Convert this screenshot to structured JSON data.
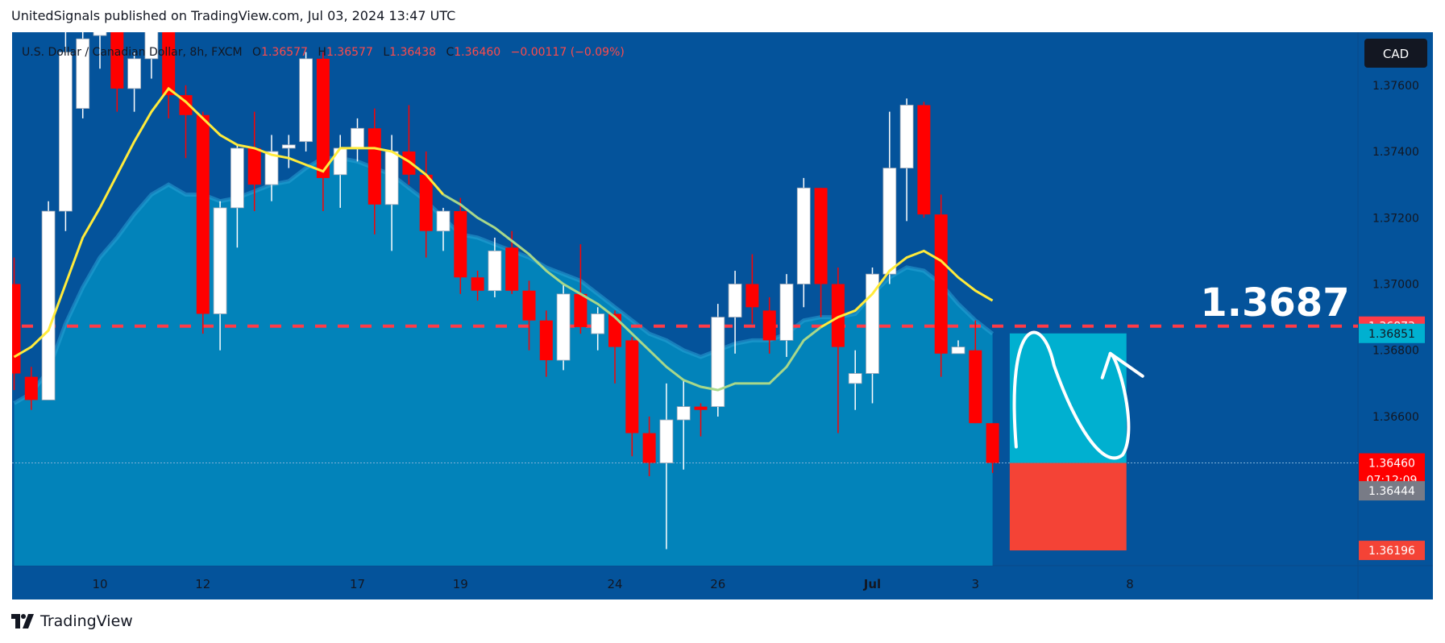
{
  "header": {
    "published": "UnitedSignals published on TradingView.com, Jul 03, 2024 13:47 UTC"
  },
  "footer": {
    "brand": "TradingView"
  },
  "legend": {
    "symbol": "U.S. Dollar / Canadian Dollar, 8h, FXCM",
    "o_label": "O",
    "o_value": "1.36577",
    "h_label": "H",
    "h_value": "1.36577",
    "l_label": "L",
    "l_value": "1.36438",
    "c_label": "C",
    "c_value": "1.36460",
    "change": "−0.00117 (−0.09%)"
  },
  "currency_button": "CAD",
  "annotation": {
    "target_text": "1.3687"
  },
  "price_labels": {
    "dashed": "1.36873",
    "target_top": "1.36851",
    "current": "1.36460",
    "countdown": "07:12:09",
    "grey": "1.36444",
    "stop": "1.36196"
  },
  "colors": {
    "bg_top": "#04539b",
    "bg_area": "#0283ba",
    "bull": "#ffffff",
    "bear": "#ff0000",
    "ma_fast": "#ffeb3b",
    "target_box": "#00b0d0",
    "stop_box": "#f44336",
    "dashed_line": "#ff3b47"
  },
  "chart_data": {
    "type": "candlestick",
    "instrument": "U.S. Dollar / Canadian Dollar",
    "timeframe": "8h",
    "y_ticks": [
      1.376,
      1.374,
      1.372,
      1.37,
      1.368,
      1.366
    ],
    "y_tick_labels": [
      "1.37600",
      "1.37400",
      "1.37200",
      "1.37000",
      "1.36800",
      "1.36600"
    ],
    "ylim": [
      1.3615,
      1.3776
    ],
    "x_ticks": [
      {
        "label": "10",
        "x": 5.0
      },
      {
        "label": "12",
        "x": 11.0
      },
      {
        "label": "17",
        "x": 20.0
      },
      {
        "label": "19",
        "x": 26.0
      },
      {
        "label": "24",
        "x": 35.0
      },
      {
        "label": "26",
        "x": 41.0
      },
      {
        "label": "Jul",
        "x": 50.0
      },
      {
        "label": "3",
        "x": 56.0
      },
      {
        "label": "8",
        "x": 65.0
      }
    ],
    "candles": [
      {
        "o": 1.37,
        "h": 1.3708,
        "l": 1.3668,
        "c": 1.3673
      },
      {
        "o": 1.3672,
        "h": 1.3675,
        "l": 1.3662,
        "c": 1.3665
      },
      {
        "o": 1.3665,
        "h": 1.3725,
        "l": 1.3665,
        "c": 1.3722
      },
      {
        "o": 1.3722,
        "h": 1.3778,
        "l": 1.3716,
        "c": 1.377
      },
      {
        "o": 1.3753,
        "h": 1.378,
        "l": 1.375,
        "c": 1.3774
      },
      {
        "o": 1.3775,
        "h": 1.379,
        "l": 1.3765,
        "c": 1.378
      },
      {
        "o": 1.3778,
        "h": 1.3788,
        "l": 1.3752,
        "c": 1.3759
      },
      {
        "o": 1.3759,
        "h": 1.377,
        "l": 1.3752,
        "c": 1.3768
      },
      {
        "o": 1.3768,
        "h": 1.3785,
        "l": 1.3762,
        "c": 1.3778
      },
      {
        "o": 1.379,
        "h": 1.3795,
        "l": 1.375,
        "c": 1.3757
      },
      {
        "o": 1.3757,
        "h": 1.376,
        "l": 1.3738,
        "c": 1.3751
      },
      {
        "o": 1.3751,
        "h": 1.3752,
        "l": 1.3685,
        "c": 1.3691
      },
      {
        "o": 1.3691,
        "h": 1.3725,
        "l": 1.368,
        "c": 1.3723
      },
      {
        "o": 1.3723,
        "h": 1.3742,
        "l": 1.3711,
        "c": 1.3741
      },
      {
        "o": 1.3741,
        "h": 1.3752,
        "l": 1.3722,
        "c": 1.373
      },
      {
        "o": 1.373,
        "h": 1.3745,
        "l": 1.3725,
        "c": 1.374
      },
      {
        "o": 1.3741,
        "h": 1.3745,
        "l": 1.3735,
        "c": 1.3742
      },
      {
        "o": 1.3743,
        "h": 1.377,
        "l": 1.374,
        "c": 1.3768
      },
      {
        "o": 1.3768,
        "h": 1.377,
        "l": 1.3722,
        "c": 1.3732
      },
      {
        "o": 1.3733,
        "h": 1.3745,
        "l": 1.3723,
        "c": 1.3741
      },
      {
        "o": 1.3741,
        "h": 1.375,
        "l": 1.3737,
        "c": 1.3747
      },
      {
        "o": 1.3747,
        "h": 1.3753,
        "l": 1.3715,
        "c": 1.3724
      },
      {
        "o": 1.3724,
        "h": 1.3745,
        "l": 1.371,
        "c": 1.374
      },
      {
        "o": 1.374,
        "h": 1.3754,
        "l": 1.373,
        "c": 1.3733
      },
      {
        "o": 1.3733,
        "h": 1.374,
        "l": 1.3708,
        "c": 1.3716
      },
      {
        "o": 1.3716,
        "h": 1.3723,
        "l": 1.371,
        "c": 1.3722
      },
      {
        "o": 1.3722,
        "h": 1.3726,
        "l": 1.3697,
        "c": 1.3702
      },
      {
        "o": 1.3702,
        "h": 1.3704,
        "l": 1.3695,
        "c": 1.3698
      },
      {
        "o": 1.3698,
        "h": 1.3714,
        "l": 1.3696,
        "c": 1.371
      },
      {
        "o": 1.3711,
        "h": 1.3716,
        "l": 1.3697,
        "c": 1.3698
      },
      {
        "o": 1.3698,
        "h": 1.3701,
        "l": 1.368,
        "c": 1.3689
      },
      {
        "o": 1.3689,
        "h": 1.3692,
        "l": 1.3672,
        "c": 1.3677
      },
      {
        "o": 1.3677,
        "h": 1.37,
        "l": 1.3674,
        "c": 1.3697
      },
      {
        "o": 1.3697,
        "h": 1.3712,
        "l": 1.3685,
        "c": 1.3687
      },
      {
        "o": 1.3685,
        "h": 1.3693,
        "l": 1.368,
        "c": 1.3691
      },
      {
        "o": 1.3691,
        "h": 1.3692,
        "l": 1.367,
        "c": 1.3681
      },
      {
        "o": 1.3683,
        "h": 1.3684,
        "l": 1.3648,
        "c": 1.3655
      },
      {
        "o": 1.3655,
        "h": 1.366,
        "l": 1.3642,
        "c": 1.3646
      },
      {
        "o": 1.3646,
        "h": 1.367,
        "l": 1.362,
        "c": 1.3659
      },
      {
        "o": 1.3659,
        "h": 1.3671,
        "l": 1.3644,
        "c": 1.3663
      },
      {
        "o": 1.3663,
        "h": 1.3664,
        "l": 1.3654,
        "c": 1.3662
      },
      {
        "o": 1.3663,
        "h": 1.3694,
        "l": 1.366,
        "c": 1.369
      },
      {
        "o": 1.369,
        "h": 1.3704,
        "l": 1.3679,
        "c": 1.37
      },
      {
        "o": 1.37,
        "h": 1.3709,
        "l": 1.3688,
        "c": 1.3693
      },
      {
        "o": 1.3692,
        "h": 1.3696,
        "l": 1.3679,
        "c": 1.3683
      },
      {
        "o": 1.3683,
        "h": 1.3703,
        "l": 1.3678,
        "c": 1.37
      },
      {
        "o": 1.37,
        "h": 1.3732,
        "l": 1.3693,
        "c": 1.3729
      },
      {
        "o": 1.3729,
        "h": 1.3729,
        "l": 1.369,
        "c": 1.37
      },
      {
        "o": 1.37,
        "h": 1.3705,
        "l": 1.3655,
        "c": 1.3681
      },
      {
        "o": 1.367,
        "h": 1.368,
        "l": 1.3662,
        "c": 1.3673
      },
      {
        "o": 1.3673,
        "h": 1.3705,
        "l": 1.3664,
        "c": 1.3703
      },
      {
        "o": 1.3703,
        "h": 1.3752,
        "l": 1.37,
        "c": 1.3735
      },
      {
        "o": 1.3735,
        "h": 1.3756,
        "l": 1.3719,
        "c": 1.3754
      },
      {
        "o": 1.3754,
        "h": 1.3755,
        "l": 1.372,
        "c": 1.3721
      },
      {
        "o": 1.3721,
        "h": 1.3727,
        "l": 1.3672,
        "c": 1.3679
      },
      {
        "o": 1.3679,
        "h": 1.3683,
        "l": 1.368,
        "c": 1.3681
      },
      {
        "o": 1.368,
        "h": 1.3689,
        "l": 1.3658,
        "c": 1.3658
      },
      {
        "o": 1.3658,
        "h": 1.3658,
        "l": 1.3643,
        "c": 1.3646
      }
    ],
    "ma_fast": [
      [
        0,
        1.3678
      ],
      [
        1,
        1.3681
      ],
      [
        2,
        1.3686
      ],
      [
        3,
        1.37
      ],
      [
        4,
        1.3714
      ],
      [
        5,
        1.3723
      ],
      [
        6,
        1.3733
      ],
      [
        7,
        1.3743
      ],
      [
        8,
        1.3752
      ],
      [
        9,
        1.3759
      ],
      [
        10,
        1.3755
      ],
      [
        11,
        1.375
      ],
      [
        12,
        1.3745
      ],
      [
        13,
        1.3742
      ],
      [
        14,
        1.3741
      ],
      [
        15,
        1.3739
      ],
      [
        16,
        1.3738
      ],
      [
        17,
        1.3736
      ],
      [
        18,
        1.3734
      ],
      [
        19,
        1.3741
      ],
      [
        20,
        1.3741
      ],
      [
        21,
        1.3741
      ],
      [
        22,
        1.374
      ],
      [
        23,
        1.3737
      ],
      [
        24,
        1.3733
      ],
      [
        25,
        1.3727
      ],
      [
        26,
        1.3724
      ],
      [
        27,
        1.372
      ],
      [
        28,
        1.3717
      ],
      [
        29,
        1.3713
      ],
      [
        30,
        1.3709
      ],
      [
        31,
        1.3704
      ],
      [
        32,
        1.37
      ],
      [
        33,
        1.3697
      ],
      [
        34,
        1.3694
      ],
      [
        35,
        1.369
      ],
      [
        36,
        1.3685
      ],
      [
        37,
        1.368
      ],
      [
        38,
        1.3675
      ],
      [
        39,
        1.3671
      ],
      [
        40,
        1.3669
      ],
      [
        41,
        1.3668
      ],
      [
        42,
        1.367
      ],
      [
        43,
        1.367
      ],
      [
        44,
        1.367
      ],
      [
        45,
        1.3675
      ],
      [
        46,
        1.3683
      ],
      [
        47,
        1.3687
      ],
      [
        48,
        1.369
      ],
      [
        49,
        1.3692
      ],
      [
        50,
        1.3697
      ],
      [
        51,
        1.3704
      ],
      [
        52,
        1.3708
      ],
      [
        53,
        1.371
      ],
      [
        54,
        1.3707
      ],
      [
        55,
        1.3702
      ],
      [
        56,
        1.3698
      ],
      [
        57,
        1.3695
      ]
    ],
    "area_band": [
      [
        0,
        1.3664
      ],
      [
        1,
        1.3667
      ],
      [
        2,
        1.3674
      ],
      [
        3,
        1.3688
      ],
      [
        4,
        1.3699
      ],
      [
        5,
        1.3708
      ],
      [
        6,
        1.3714
      ],
      [
        7,
        1.3721
      ],
      [
        8,
        1.3727
      ],
      [
        9,
        1.373
      ],
      [
        10,
        1.3727
      ],
      [
        11,
        1.3727
      ],
      [
        12,
        1.3725
      ],
      [
        13,
        1.3726
      ],
      [
        14,
        1.3728
      ],
      [
        15,
        1.373
      ],
      [
        16,
        1.3731
      ],
      [
        17,
        1.3735
      ],
      [
        18,
        1.3738
      ],
      [
        19,
        1.3738
      ],
      [
        20,
        1.3737
      ],
      [
        21,
        1.3735
      ],
      [
        22,
        1.3733
      ],
      [
        23,
        1.3729
      ],
      [
        24,
        1.3725
      ],
      [
        25,
        1.372
      ],
      [
        26,
        1.3715
      ],
      [
        27,
        1.3714
      ],
      [
        28,
        1.3712
      ],
      [
        29,
        1.371
      ],
      [
        30,
        1.3708
      ],
      [
        31,
        1.3705
      ],
      [
        32,
        1.3703
      ],
      [
        33,
        1.3701
      ],
      [
        34,
        1.3697
      ],
      [
        35,
        1.3693
      ],
      [
        36,
        1.3689
      ],
      [
        37,
        1.3685
      ],
      [
        38,
        1.3683
      ],
      [
        39,
        1.368
      ],
      [
        40,
        1.3678
      ],
      [
        41,
        1.368
      ],
      [
        42,
        1.3682
      ],
      [
        43,
        1.3683
      ],
      [
        44,
        1.3683
      ],
      [
        45,
        1.3685
      ],
      [
        46,
        1.3689
      ],
      [
        47,
        1.369
      ],
      [
        48,
        1.369
      ],
      [
        49,
        1.3691
      ],
      [
        50,
        1.3697
      ],
      [
        51,
        1.3702
      ],
      [
        52,
        1.3705
      ],
      [
        53,
        1.3704
      ],
      [
        54,
        1.37
      ],
      [
        55,
        1.3694
      ],
      [
        56,
        1.3689
      ],
      [
        57,
        1.3685
      ]
    ],
    "dashed_level": 1.36873,
    "current_price": 1.3646,
    "position": {
      "entry": 1.3646,
      "target": 1.36851,
      "stop": 1.36196,
      "x_start": 58.0,
      "x_end": 64.8
    }
  }
}
